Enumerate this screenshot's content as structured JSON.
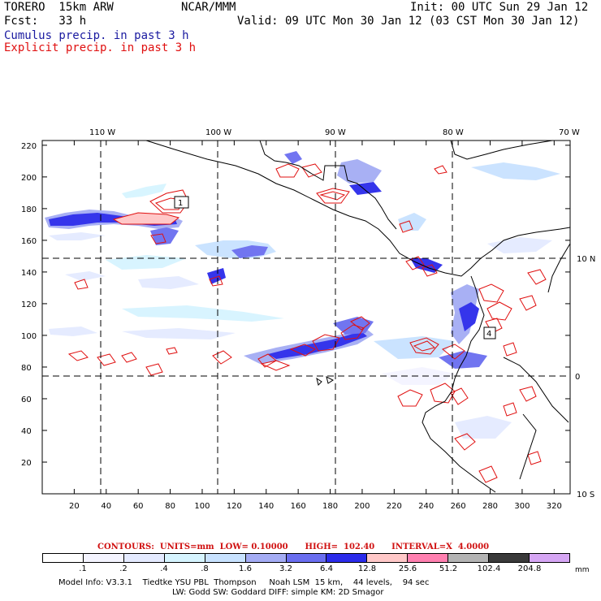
{
  "header": {
    "model": "TORERO  15km ARW",
    "org": "NCAR/MMM",
    "init": "Init: 00 UTC Sun 29 Jan 12",
    "fcst": "Fcst:   33 h",
    "valid": "Valid: 09 UTC Mon 30 Jan 12 (03 CST Mon 30 Jan 12)",
    "legend_cumulus": "Cumulus precip. in past 3 h",
    "legend_explicit": "Explicit precip. in past 3 h"
  },
  "axes": {
    "top_lon": [
      "110 W",
      "100 W",
      "90 W",
      "80 W",
      "70 W"
    ],
    "right_lat": [
      "10 N",
      "0",
      "10 S"
    ],
    "left_ticks": [
      "220",
      "200",
      "180",
      "160",
      "140",
      "120",
      "100",
      "80",
      "60",
      "40",
      "20"
    ],
    "bottom_ticks": [
      "20",
      "40",
      "60",
      "80",
      "100",
      "120",
      "140",
      "160",
      "180",
      "200",
      "220",
      "240",
      "260",
      "280",
      "300",
      "320"
    ]
  },
  "markers": [
    "1",
    "4"
  ],
  "contours_line": "CONTOURS:  UNITS=mm  LOW= 0.10000      HIGH=  102.40      INTERVAL=X  4.0000",
  "legend": {
    "labels": [
      ".1",
      ".2",
      ".4",
      ".8",
      "1.6",
      "3.2",
      "6.4",
      "12.8",
      "25.6",
      "51.2",
      "102.4",
      "204.8"
    ],
    "unit": "mm",
    "colors": [
      "#ffffff",
      "#f4f4ff",
      "#e4eaff",
      "#d6f4ff",
      "#c8e2ff",
      "#a4acf4",
      "#6a6ef0",
      "#2b2bea",
      "#ffc8c8",
      "#ff80b0",
      "#b4b4b4",
      "#3a3a3a",
      "#d6a6f4"
    ]
  },
  "footer": {
    "line1": "Model Info: V3.3.1    Tiedtke YSU PBL  Thompson     Noah LSM  15 km,    44 levels,    94 sec",
    "line2": "LW: Godd SW: Goddard DIFF: simple KM: 2D Smagor"
  }
}
